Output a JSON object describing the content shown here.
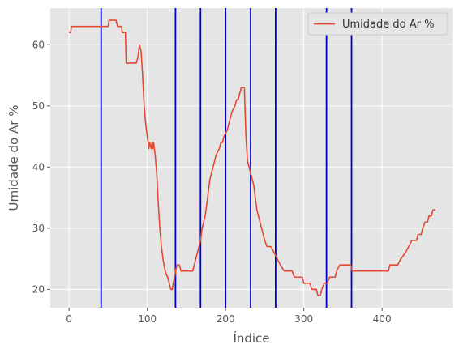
{
  "chart_data": {
    "type": "line",
    "xlabel": "Índice",
    "ylabel": "Umidade do Ar %",
    "xlim": [
      -24,
      490
    ],
    "ylim": [
      17,
      66
    ],
    "x_ticks": [
      0,
      100,
      200,
      300,
      400
    ],
    "y_ticks": [
      20,
      30,
      40,
      50,
      60
    ],
    "grid": true,
    "legend_position": "top-right",
    "vertical_lines": {
      "x": [
        41,
        136,
        168,
        200,
        232,
        264,
        329,
        361
      ],
      "color": "#0000CC"
    },
    "series": [
      {
        "name": "Umidade do Ar %",
        "color": "#E24A33",
        "points": [
          [
            0,
            62
          ],
          [
            2,
            62
          ],
          [
            3,
            63
          ],
          [
            10,
            63
          ],
          [
            50,
            63
          ],
          [
            51,
            64
          ],
          [
            60,
            64
          ],
          [
            62,
            63
          ],
          [
            67,
            63
          ],
          [
            68,
            62
          ],
          [
            72,
            62
          ],
          [
            73,
            57
          ],
          [
            86,
            57
          ],
          [
            88,
            58
          ],
          [
            90,
            60
          ],
          [
            92,
            59
          ],
          [
            94,
            55
          ],
          [
            96,
            50
          ],
          [
            98,
            47
          ],
          [
            100,
            45
          ],
          [
            102,
            43
          ],
          [
            103,
            44
          ],
          [
            105,
            43
          ],
          [
            106,
            44
          ],
          [
            107,
            43
          ],
          [
            108,
            44
          ],
          [
            110,
            42
          ],
          [
            112,
            39
          ],
          [
            114,
            34
          ],
          [
            116,
            30
          ],
          [
            118,
            27
          ],
          [
            120,
            25
          ],
          [
            122,
            23.5
          ],
          [
            124,
            22.5
          ],
          [
            126,
            22
          ],
          [
            128,
            21
          ],
          [
            130,
            20
          ],
          [
            132,
            20
          ],
          [
            133,
            21
          ],
          [
            135,
            22
          ],
          [
            136,
            23
          ],
          [
            138,
            24
          ],
          [
            141,
            24
          ],
          [
            143,
            23
          ],
          [
            158,
            23
          ],
          [
            160,
            24
          ],
          [
            162,
            25
          ],
          [
            164,
            26
          ],
          [
            166,
            27
          ],
          [
            168,
            28
          ],
          [
            170,
            30
          ],
          [
            172,
            31
          ],
          [
            174,
            32
          ],
          [
            176,
            34
          ],
          [
            178,
            36
          ],
          [
            180,
            38
          ],
          [
            182,
            39
          ],
          [
            184,
            40
          ],
          [
            186,
            41
          ],
          [
            188,
            42
          ],
          [
            190,
            42.5
          ],
          [
            192,
            43
          ],
          [
            194,
            44
          ],
          [
            196,
            44
          ],
          [
            198,
            45
          ],
          [
            200,
            45.5
          ],
          [
            202,
            46
          ],
          [
            204,
            47
          ],
          [
            206,
            48
          ],
          [
            208,
            49
          ],
          [
            210,
            49.5
          ],
          [
            212,
            50
          ],
          [
            214,
            51
          ],
          [
            216,
            51
          ],
          [
            218,
            52
          ],
          [
            220,
            53
          ],
          [
            222,
            53
          ],
          [
            224,
            53
          ],
          [
            226,
            45
          ],
          [
            228,
            41
          ],
          [
            230,
            40
          ],
          [
            232,
            39
          ],
          [
            234,
            38
          ],
          [
            236,
            37
          ],
          [
            238,
            35
          ],
          [
            240,
            33
          ],
          [
            242,
            32
          ],
          [
            244,
            31
          ],
          [
            246,
            30
          ],
          [
            248,
            29
          ],
          [
            250,
            28
          ],
          [
            253,
            27
          ],
          [
            258,
            27
          ],
          [
            262,
            26
          ],
          [
            266,
            25
          ],
          [
            270,
            24
          ],
          [
            275,
            23
          ],
          [
            285,
            23
          ],
          [
            288,
            22
          ],
          [
            298,
            22
          ],
          [
            300,
            21
          ],
          [
            308,
            21
          ],
          [
            310,
            20
          ],
          [
            316,
            20
          ],
          [
            318,
            19
          ],
          [
            321,
            19
          ],
          [
            323,
            20
          ],
          [
            326,
            21
          ],
          [
            330,
            21
          ],
          [
            333,
            22
          ],
          [
            340,
            22
          ],
          [
            342,
            23
          ],
          [
            346,
            24
          ],
          [
            360,
            24
          ],
          [
            362,
            23
          ],
          [
            408,
            23
          ],
          [
            410,
            24
          ],
          [
            420,
            24
          ],
          [
            424,
            25
          ],
          [
            430,
            26
          ],
          [
            434,
            27
          ],
          [
            438,
            28
          ],
          [
            444,
            28
          ],
          [
            446,
            29
          ],
          [
            450,
            29
          ],
          [
            452,
            30
          ],
          [
            455,
            31
          ],
          [
            458,
            31
          ],
          [
            460,
            32
          ],
          [
            463,
            32
          ],
          [
            465,
            33
          ],
          [
            468,
            33
          ]
        ]
      }
    ]
  }
}
